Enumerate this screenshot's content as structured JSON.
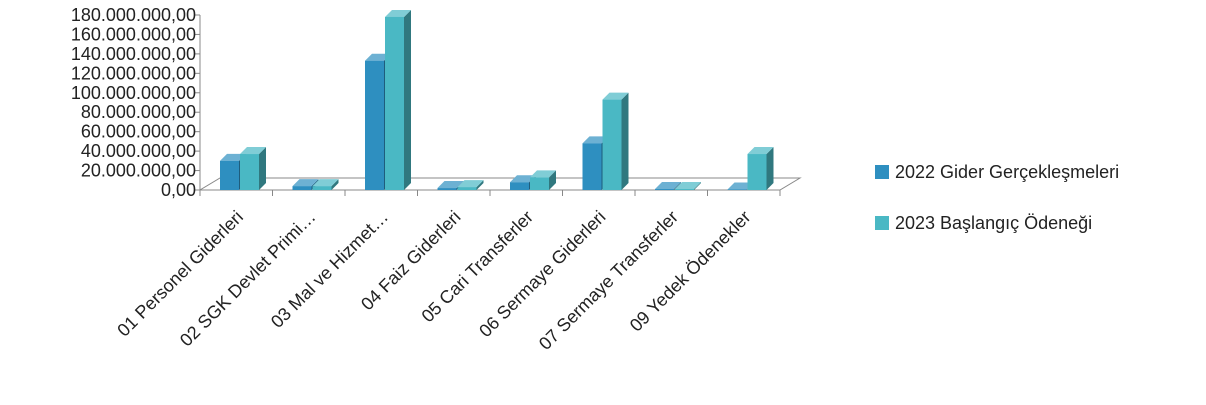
{
  "chart_data": {
    "type": "bar",
    "title": "",
    "xlabel": "",
    "ylabel": "",
    "ylim": [
      0,
      180000000
    ],
    "yticks": [
      0,
      20000000,
      40000000,
      60000000,
      80000000,
      100000000,
      120000000,
      140000000,
      160000000,
      180000000
    ],
    "ytick_labels": [
      "0,00",
      "20.000.000,00",
      "40.000.000,00",
      "60.000.000,00",
      "80.000.000,00",
      "100.000.000,00",
      "120.000.000,00",
      "140.000.000,00",
      "160.000.000,00",
      "180.000.000,00"
    ],
    "categories": [
      "01 Personel Giderleri",
      "02 SGK Devlet Primi…",
      "03 Mal ve Hizmet…",
      "04 Faiz Giderleri",
      "05 Cari Transferler",
      "06 Sermaye Giderleri",
      "07 Sermaye Transferler",
      "09 Yedek Ödenekler"
    ],
    "series": [
      {
        "name": "2022 Gider Gerçekleşmeleri",
        "color": "#2e8fc0",
        "values": [
          30000000,
          4000000,
          133000000,
          2000000,
          8000000,
          48000000,
          1000000,
          500000
        ]
      },
      {
        "name": "2023 Başlangıç Ödeneği",
        "color": "#4ab8c4",
        "values": [
          37000000,
          4000000,
          178000000,
          3000000,
          13000000,
          93000000,
          1000000,
          37000000
        ]
      }
    ],
    "grid": false,
    "legend": "right",
    "style": "3d-column"
  }
}
